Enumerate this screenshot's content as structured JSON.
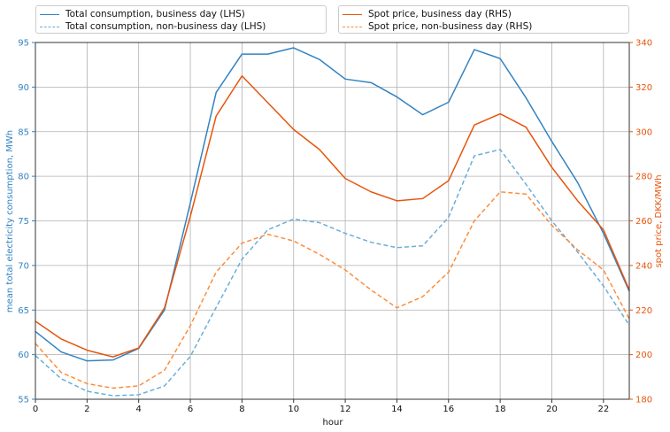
{
  "chart_data": {
    "type": "line",
    "xlabel": "hour",
    "ylabel_left": "mean total electricity consumption, MWh",
    "ylabel_right": "spot price, DKK/MWh",
    "x": [
      0,
      1,
      2,
      3,
      4,
      5,
      6,
      7,
      8,
      9,
      10,
      11,
      12,
      13,
      14,
      15,
      16,
      17,
      18,
      19,
      20,
      21,
      22,
      23
    ],
    "xlim": [
      0,
      23
    ],
    "xticks": [
      0,
      2,
      4,
      6,
      8,
      10,
      12,
      14,
      16,
      18,
      20,
      22
    ],
    "ylim_left": [
      55,
      95
    ],
    "yticks_left": [
      55,
      60,
      65,
      70,
      75,
      80,
      85,
      90,
      95
    ],
    "ylim_right": [
      180,
      340
    ],
    "yticks_right": [
      180,
      200,
      220,
      240,
      260,
      280,
      300,
      320,
      340
    ],
    "grid": true,
    "legend_placement": "top",
    "colors": {
      "lhs": "#3383c2",
      "lhs_light": "#6baed6",
      "rhs": "#e6550d",
      "rhs_light": "#fd8d3c"
    },
    "series": [
      {
        "name": "Total consumption, business day (LHS)",
        "axis": "left",
        "style": "solid",
        "color": "#3383c2",
        "values": [
          62.6,
          60.3,
          59.3,
          59.4,
          60.7,
          65.0,
          77.0,
          89.4,
          93.7,
          93.7,
          94.4,
          93.1,
          90.9,
          90.5,
          88.9,
          86.9,
          88.3,
          94.2,
          93.2,
          88.8,
          83.9,
          79.3,
          73.6,
          67.1
        ]
      },
      {
        "name": "Total consumption, non-business day (LHS)",
        "axis": "left",
        "style": "dashed",
        "color": "#6baed6",
        "values": [
          59.9,
          57.3,
          55.9,
          55.4,
          55.5,
          56.5,
          59.8,
          65.3,
          70.7,
          74.0,
          75.2,
          74.8,
          73.6,
          72.6,
          72.0,
          72.2,
          75.4,
          82.3,
          83.0,
          79.1,
          75.0,
          71.5,
          67.7,
          63.3
        ]
      },
      {
        "name": "Spot price, business day (RHS)",
        "axis": "right",
        "style": "solid",
        "color": "#e6550d",
        "values": [
          215,
          207,
          202,
          199,
          203,
          221,
          262,
          307,
          325,
          313,
          301,
          292,
          279,
          273,
          269,
          270,
          278,
          303,
          308,
          302,
          284,
          269,
          256,
          229
        ]
      },
      {
        "name": "Spot price, non-business day (RHS)",
        "axis": "right",
        "style": "dashed",
        "color": "#fd8d3c",
        "values": [
          205,
          192,
          187,
          185,
          186,
          193,
          213,
          237,
          250,
          254,
          251,
          245,
          238,
          229,
          221,
          226,
          237,
          260,
          273,
          272,
          258,
          247,
          238,
          216
        ]
      }
    ]
  }
}
